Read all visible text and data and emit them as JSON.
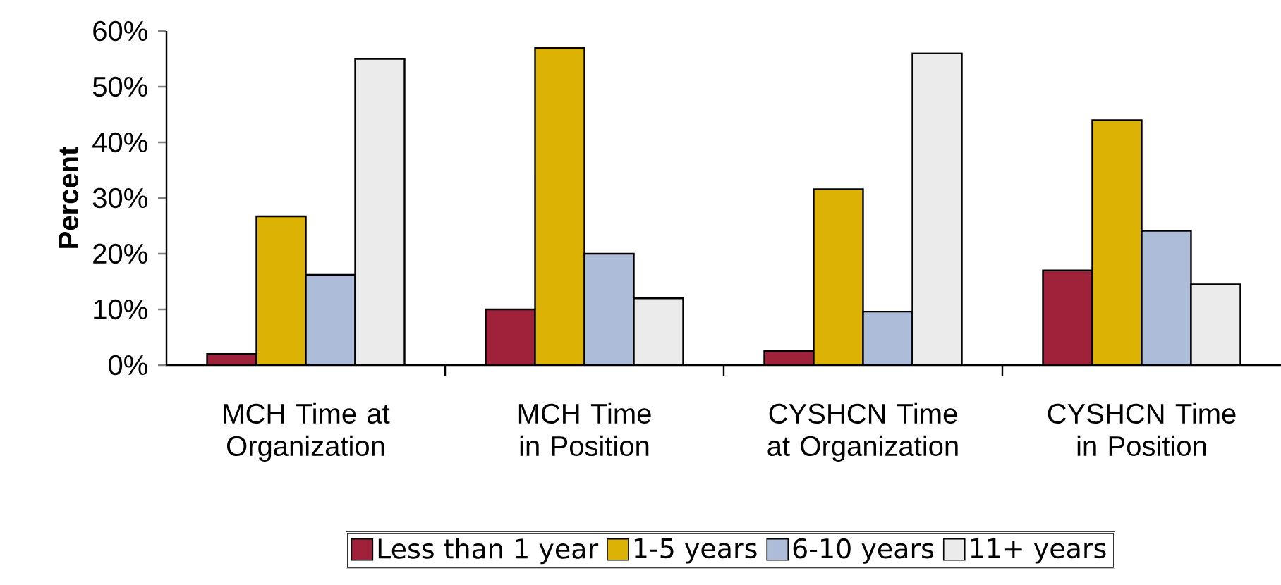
{
  "chart_data": {
    "type": "bar",
    "ylabel": "Percent",
    "categories": [
      "MCH Time at Organization",
      "MCH Time in Position",
      "CYSHCN Time at Organization",
      "CYSHCN Time in Position"
    ],
    "series": [
      {
        "name": "Less than 1 year",
        "color": "#a0223a",
        "values": [
          2,
          10,
          2.5,
          17
        ]
      },
      {
        "name": "1-5 years",
        "color": "#dcb305",
        "values": [
          26.7,
          57,
          31.6,
          44
        ]
      },
      {
        "name": "6-10 years",
        "color": "#adbcd9",
        "values": [
          16.2,
          20,
          9.6,
          24.1
        ]
      },
      {
        "name": "11+ years",
        "color": "#ebebeb",
        "values": [
          55,
          12,
          56,
          14.5
        ]
      }
    ],
    "ylim": [
      0,
      60
    ],
    "yticks": [
      {
        "value": 0,
        "label": "0%"
      },
      {
        "value": 10,
        "label": "10%"
      },
      {
        "value": 20,
        "label": "20%"
      },
      {
        "value": 30,
        "label": "30%"
      },
      {
        "value": 40,
        "label": "40%"
      },
      {
        "value": 50,
        "label": "50%"
      },
      {
        "value": 60,
        "label": "60%"
      }
    ],
    "legend": "bottom"
  }
}
